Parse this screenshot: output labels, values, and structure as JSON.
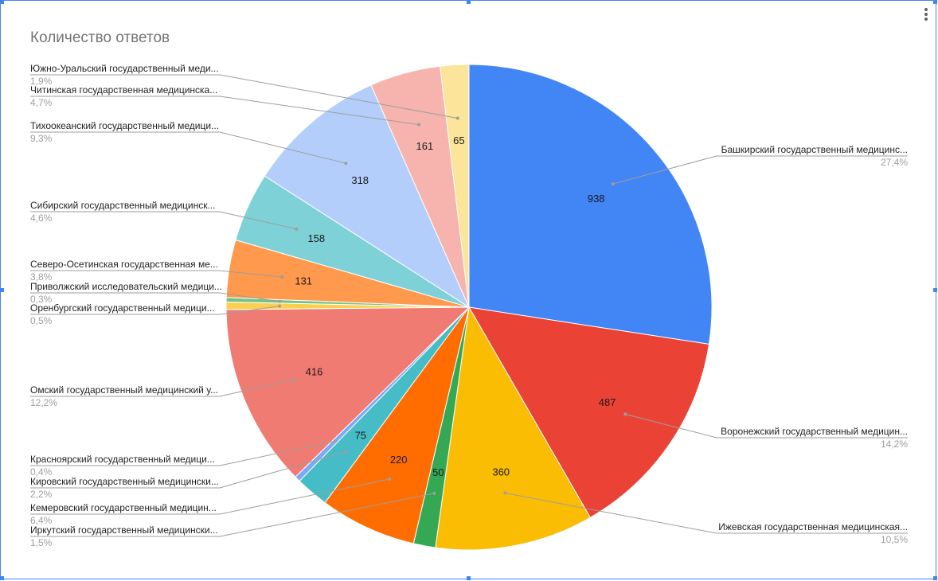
{
  "chart_data": {
    "type": "pie",
    "title": "Количество ответов",
    "start_angle_deg": 0,
    "slices": [
      {
        "name": "Башкирский государственный медицинс...",
        "value": 938,
        "percent": "27,4%",
        "color": "#4285f4"
      },
      {
        "name": "Воронежский государственный медицин...",
        "value": 487,
        "percent": "14,2%",
        "color": "#ea4335"
      },
      {
        "name": "Ижевская государственная медицинская...",
        "value": 360,
        "percent": "10,5%",
        "color": "#fbbc04"
      },
      {
        "name": "Иркутский государственный медицински...",
        "value": 50,
        "percent": "1,5%",
        "color": "#34a853"
      },
      {
        "name": "Кемеровский государственный медицин...",
        "value": 220,
        "percent": "6,4%",
        "color": "#ff6d01"
      },
      {
        "name": "Кировский государственный медицински...",
        "value": 75,
        "percent": "2,2%",
        "color": "#46bdc6"
      },
      {
        "name": "Красноярский государственный медици...",
        "value": 13,
        "percent": "0,4%",
        "color": "#7baaf7"
      },
      {
        "name": "Омский государственный медицинский у...",
        "value": 416,
        "percent": "12,2%",
        "color": "#f07b72"
      },
      {
        "name": "Оренбургский государственный медици...",
        "value": 17,
        "percent": "0,5%",
        "color": "#fcd04f"
      },
      {
        "name": "Приволжский исследовательский медици...",
        "value": 10,
        "percent": "0,3%",
        "color": "#71c287"
      },
      {
        "name": "Северо-Осетинская государственная ме...",
        "value": 131,
        "percent": "3,8%",
        "color": "#ff994d"
      },
      {
        "name": "Сибирский государственный медицинск...",
        "value": 158,
        "percent": "4,6%",
        "color": "#7ed1d7"
      },
      {
        "name": "Тихоокеанский государственный медици...",
        "value": 318,
        "percent": "9,3%",
        "color": "#b3cefb"
      },
      {
        "name": "Читинская государственная медицинска...",
        "value": 161,
        "percent": "4,7%",
        "color": "#f7b4ae"
      },
      {
        "name": "Южно-Уральский государственный меди...",
        "value": 65,
        "percent": "1,9%",
        "color": "#fde49b"
      }
    ]
  }
}
